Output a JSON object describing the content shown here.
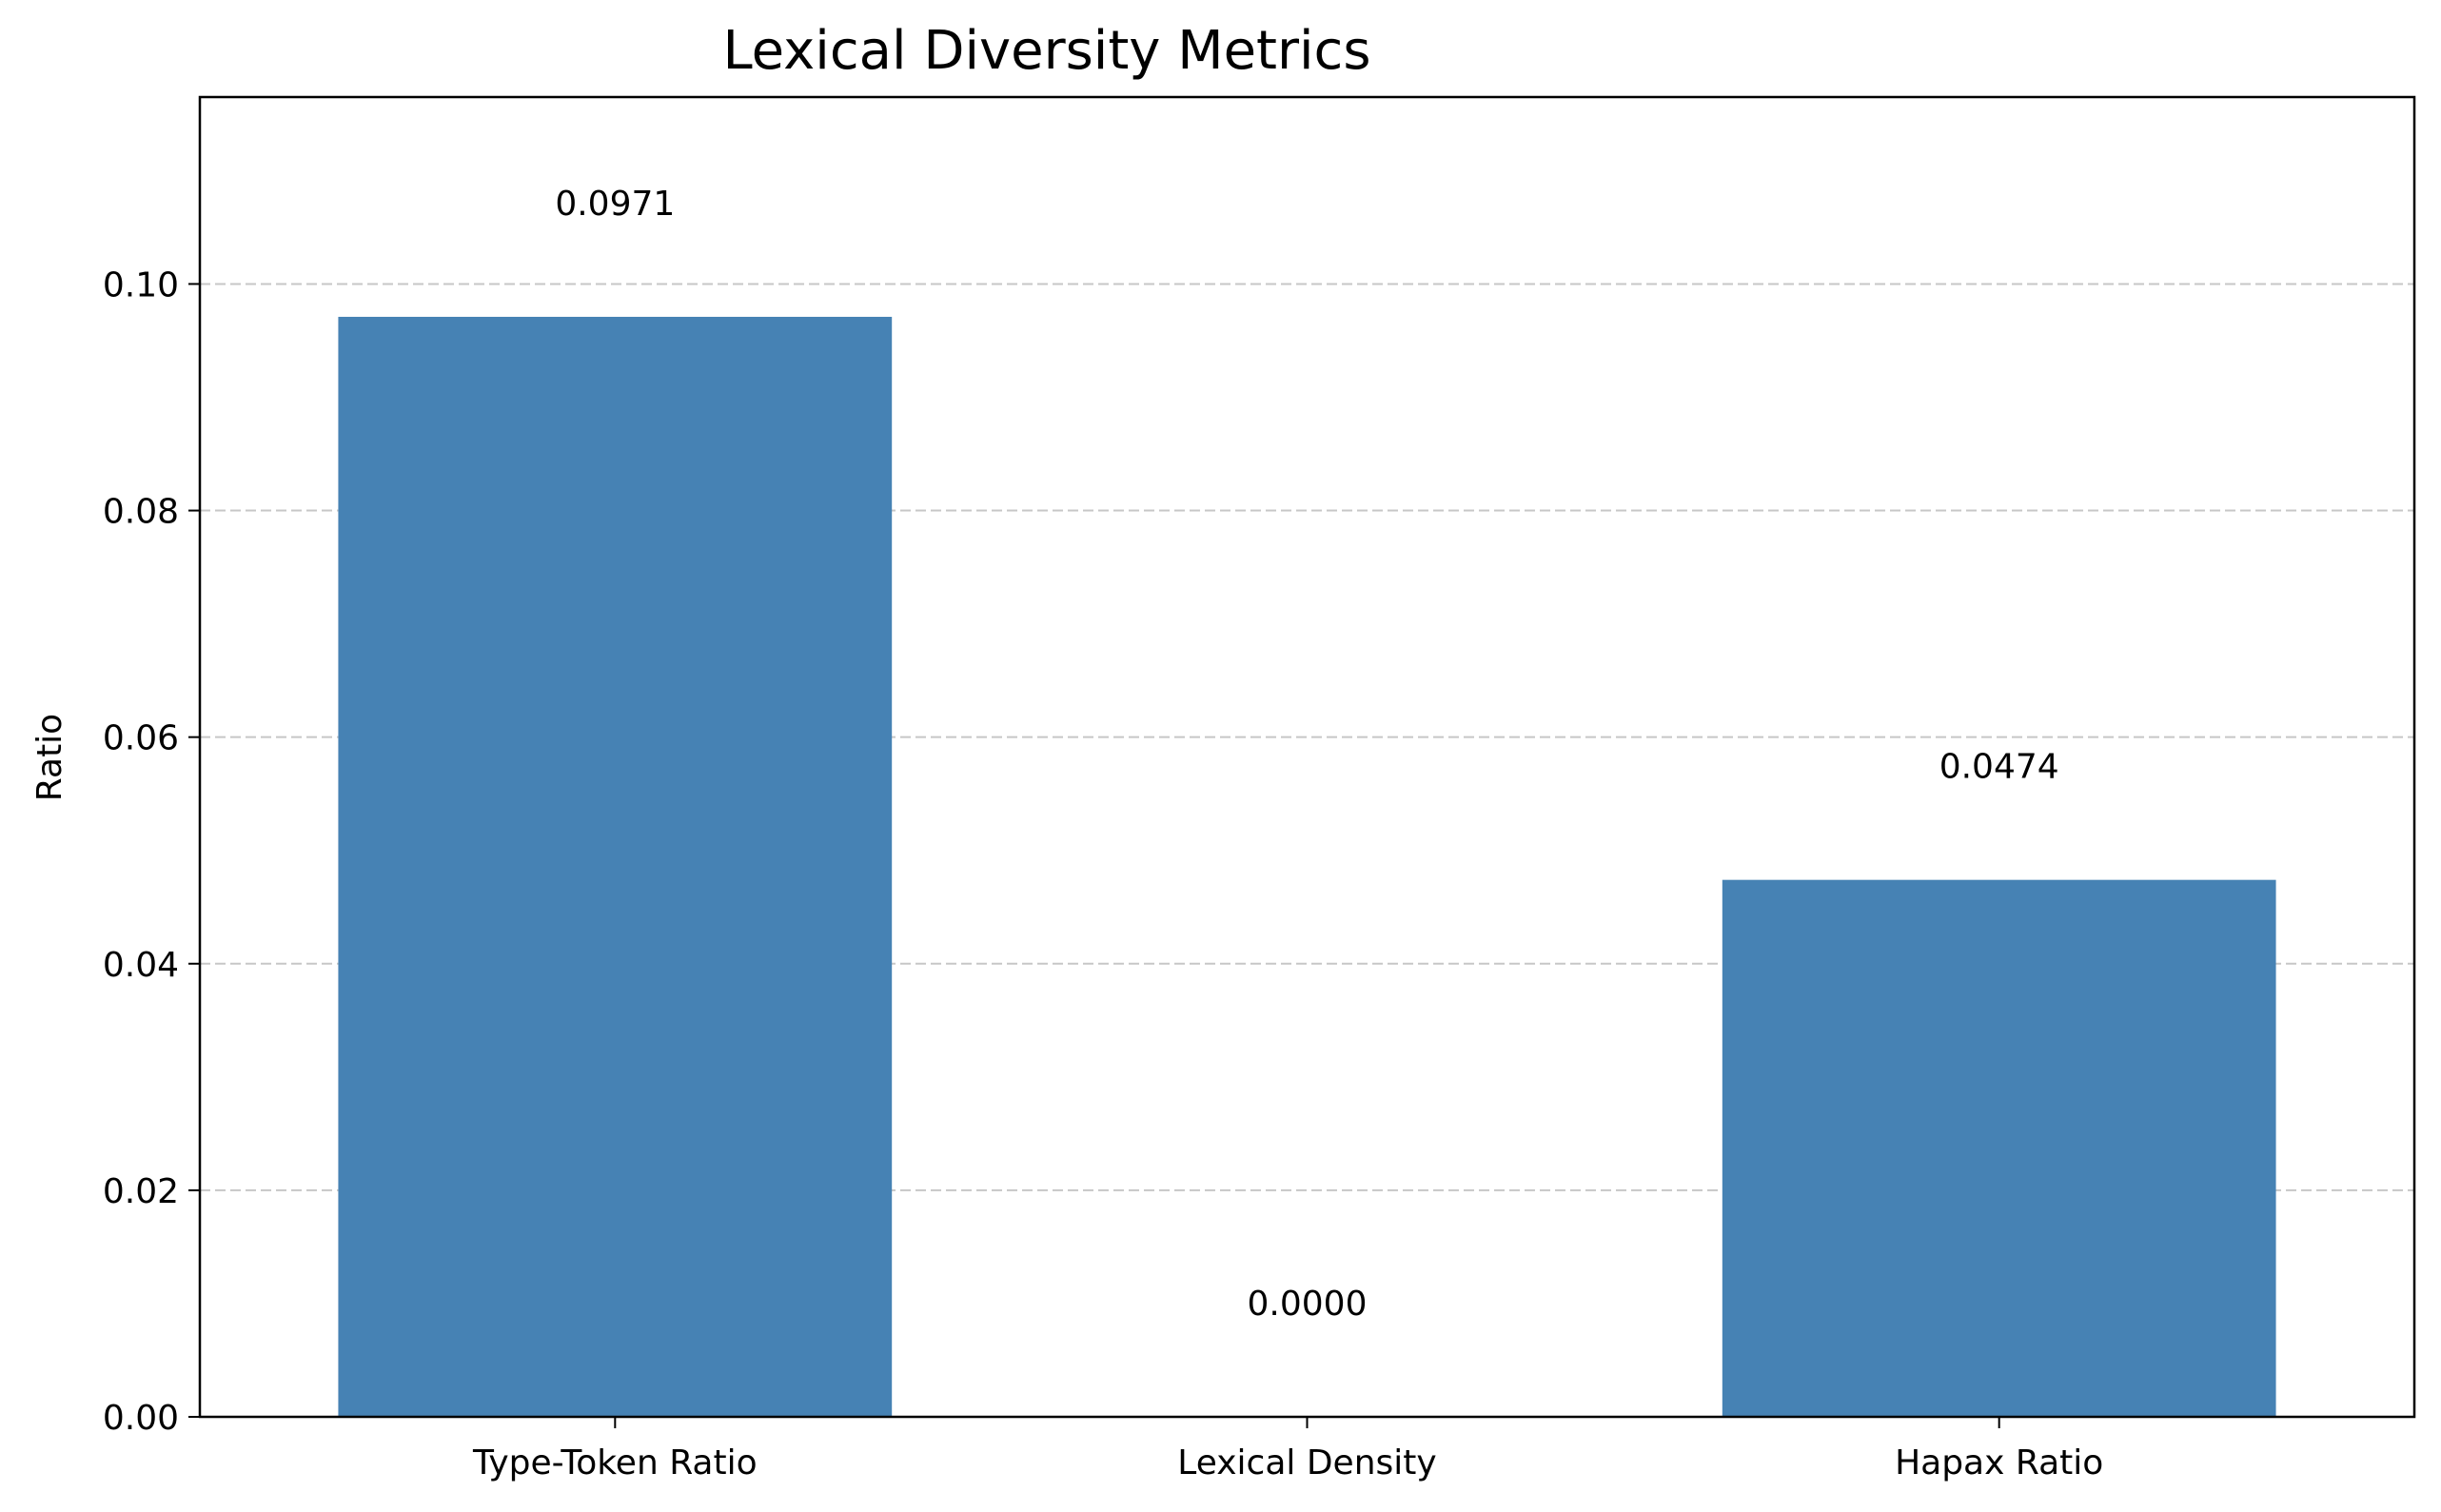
{
  "chart_data": {
    "type": "bar",
    "title": "Lexical Diversity Metrics",
    "xlabel": "",
    "ylabel": "Ratio",
    "categories": [
      "Type-Token Ratio",
      "Lexical Density",
      "Hapax Ratio"
    ],
    "values": [
      0.0971,
      0.0,
      0.0474
    ],
    "value_labels": [
      "0.0971",
      "0.0000",
      "0.0474"
    ],
    "ylim": [
      0,
      0.1165
    ],
    "yticks": [
      0.0,
      0.02,
      0.04,
      0.06,
      0.08,
      0.1
    ],
    "ytick_labels": [
      "0.00",
      "0.02",
      "0.04",
      "0.06",
      "0.08",
      "0.10"
    ],
    "grid": "y-dashed",
    "bar_color": "#4682b4"
  }
}
